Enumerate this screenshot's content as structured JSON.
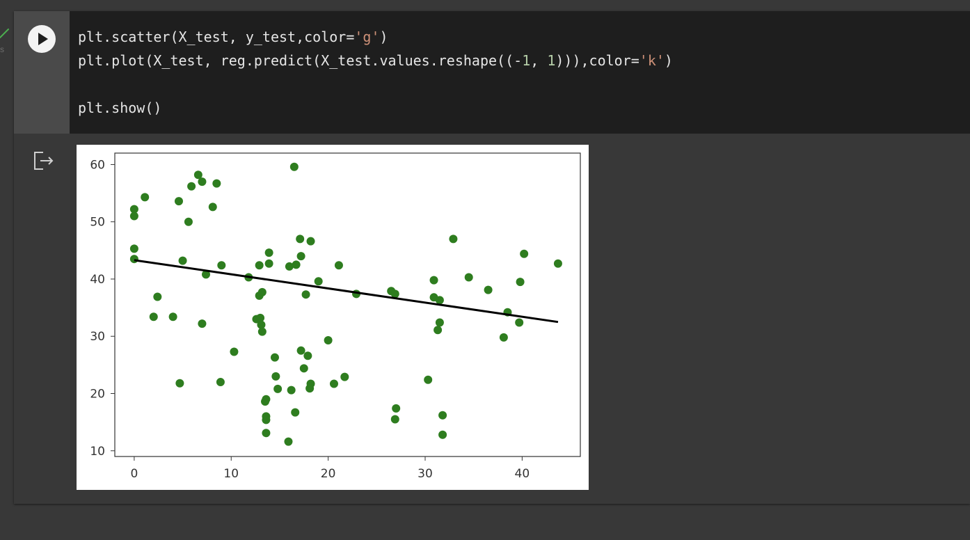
{
  "gutter": {
    "left_edge_fragment": "s"
  },
  "code": {
    "lines": [
      [
        {
          "t": "plt.scatter(X_test, y_test,color=",
          "c": ""
        },
        {
          "t": "'g'",
          "c": "str"
        },
        {
          "t": ")",
          "c": ""
        }
      ],
      [
        {
          "t": "plt.plot(X_test, reg.predict(X_test.values.reshape((-",
          "c": ""
        },
        {
          "t": "1",
          "c": "num"
        },
        {
          "t": ", ",
          "c": ""
        },
        {
          "t": "1",
          "c": "num"
        },
        {
          "t": "))),color=",
          "c": ""
        },
        {
          "t": "'k'",
          "c": "str"
        },
        {
          "t": ")",
          "c": ""
        }
      ],
      [],
      [
        {
          "t": "plt.show()",
          "c": ""
        }
      ]
    ]
  },
  "icons": {
    "run": "play-icon",
    "output": "output-redirect-icon",
    "status": "check-icon"
  },
  "colors": {
    "scatter": "#2e7d1f",
    "line": "#000000",
    "code_bg": "#1e1e1e",
    "string": "#ce9178",
    "number": "#b5cea8"
  },
  "chart_data": {
    "type": "scatter",
    "title": "",
    "xlabel": "",
    "ylabel": "",
    "xlim": [
      -2,
      46
    ],
    "ylim": [
      9,
      62
    ],
    "xticks": [
      "0",
      "10",
      "20",
      "30",
      "40"
    ],
    "yticks": [
      "10",
      "20",
      "30",
      "40",
      "50",
      "60"
    ],
    "grid": false,
    "series": [
      {
        "type": "scatter",
        "color": "g",
        "points": [
          [
            0,
            52.2
          ],
          [
            0,
            51.0
          ],
          [
            0,
            45.3
          ],
          [
            0,
            43.5
          ],
          [
            1.1,
            54.3
          ],
          [
            2.0,
            33.4
          ],
          [
            2.4,
            36.9
          ],
          [
            4.0,
            33.4
          ],
          [
            4.6,
            53.6
          ],
          [
            4.7,
            21.8
          ],
          [
            5.0,
            43.2
          ],
          [
            5.6,
            50.0
          ],
          [
            5.9,
            56.2
          ],
          [
            6.6,
            58.2
          ],
          [
            7.0,
            57.0
          ],
          [
            7.0,
            32.2
          ],
          [
            7.4,
            40.8
          ],
          [
            8.1,
            52.6
          ],
          [
            8.5,
            56.7
          ],
          [
            8.9,
            22.0
          ],
          [
            9.0,
            42.4
          ],
          [
            10.3,
            27.3
          ],
          [
            11.8,
            40.3
          ],
          [
            12.6,
            33.0
          ],
          [
            12.9,
            42.4
          ],
          [
            12.9,
            37.1
          ],
          [
            13.0,
            33.2
          ],
          [
            13.1,
            32.0
          ],
          [
            13.2,
            37.7
          ],
          [
            13.2,
            30.8
          ],
          [
            13.5,
            18.6
          ],
          [
            13.6,
            19.0
          ],
          [
            13.6,
            16.0
          ],
          [
            13.6,
            15.4
          ],
          [
            13.6,
            13.1
          ],
          [
            13.9,
            42.7
          ],
          [
            13.9,
            44.6
          ],
          [
            14.5,
            26.3
          ],
          [
            14.6,
            23.0
          ],
          [
            14.8,
            20.8
          ],
          [
            15.9,
            11.6
          ],
          [
            16.0,
            42.2
          ],
          [
            16.2,
            20.6
          ],
          [
            16.5,
            59.6
          ],
          [
            16.6,
            16.7
          ],
          [
            16.7,
            42.5
          ],
          [
            17.1,
            47.0
          ],
          [
            17.2,
            44.0
          ],
          [
            17.2,
            27.5
          ],
          [
            17.5,
            24.4
          ],
          [
            17.7,
            37.3
          ],
          [
            17.9,
            26.6
          ],
          [
            18.1,
            20.9
          ],
          [
            18.2,
            21.7
          ],
          [
            18.2,
            46.6
          ],
          [
            19.0,
            39.6
          ],
          [
            20.0,
            29.3
          ],
          [
            20.6,
            21.7
          ],
          [
            21.1,
            42.4
          ],
          [
            21.7,
            22.9
          ],
          [
            22.9,
            37.4
          ],
          [
            26.5,
            37.9
          ],
          [
            26.9,
            37.4
          ],
          [
            26.9,
            15.5
          ],
          [
            27.0,
            17.4
          ],
          [
            30.3,
            22.4
          ],
          [
            30.9,
            36.8
          ],
          [
            30.9,
            39.8
          ],
          [
            31.3,
            31.1
          ],
          [
            31.5,
            32.4
          ],
          [
            31.5,
            36.3
          ],
          [
            31.8,
            16.2
          ],
          [
            31.8,
            12.8
          ],
          [
            32.9,
            47.0
          ],
          [
            34.5,
            40.3
          ],
          [
            36.5,
            38.1
          ],
          [
            38.1,
            29.8
          ],
          [
            38.5,
            34.2
          ],
          [
            39.7,
            32.4
          ],
          [
            39.8,
            39.5
          ],
          [
            40.2,
            44.4
          ],
          [
            43.7,
            42.7
          ]
        ]
      },
      {
        "type": "line",
        "color": "k",
        "points": [
          [
            0,
            43.3
          ],
          [
            43.7,
            32.5
          ]
        ]
      }
    ]
  }
}
